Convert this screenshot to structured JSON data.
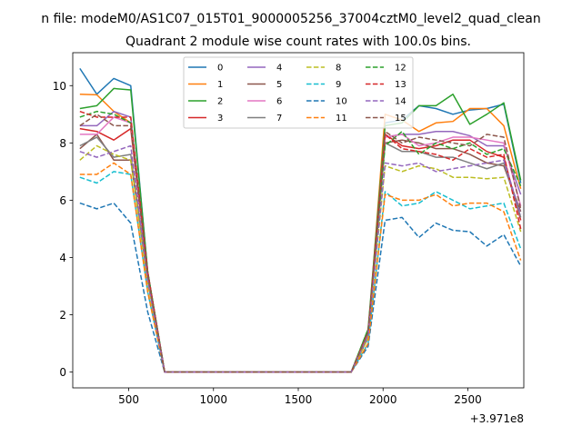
{
  "chart_data": {
    "type": "line",
    "suptitle": "n file: modeM0/AS1C07_015T01_9000005256_37004cztM0_level2_quad_clean",
    "title": "Quadrant 2 module wise count rates with 100.0s bins.",
    "xlabel": "",
    "ylabel": "",
    "x_offset_label": "+3.971e8",
    "xlim": [
      170,
      2830
    ],
    "ylim": [
      -0.55,
      11.15
    ],
    "xticks": [
      500,
      1000,
      1500,
      2000,
      2500
    ],
    "xtick_labels": [
      "500",
      "1000",
      "1500",
      "2000",
      "2500"
    ],
    "yticks": [
      0,
      2,
      4,
      6,
      8,
      10
    ],
    "ytick_labels": [
      "0",
      "2",
      "4",
      "6",
      "8",
      "10"
    ],
    "grid": false,
    "legend_position": "top-center",
    "legend_columns": 4,
    "x": [
      212,
      312,
      412,
      512,
      612,
      712,
      812,
      912,
      1012,
      1112,
      1212,
      1312,
      1412,
      1512,
      1612,
      1712,
      1812,
      1912,
      2012,
      2112,
      2212,
      2312,
      2412,
      2512,
      2612,
      2712,
      2812
    ],
    "series": [
      {
        "name": "0",
        "color": "#1f77b4",
        "dash": "solid",
        "values": [
          10.6,
          9.7,
          10.25,
          10.0,
          3.5,
          0,
          0,
          0,
          0,
          0,
          0,
          0,
          0,
          0,
          0,
          0,
          0,
          1.3,
          8.7,
          8.8,
          9.3,
          9.2,
          9.0,
          9.15,
          9.2,
          9.35,
          6.6
        ]
      },
      {
        "name": "1",
        "color": "#ff7f0e",
        "dash": "solid",
        "values": [
          9.7,
          9.68,
          9.1,
          8.7,
          3.3,
          0,
          0,
          0,
          0,
          0,
          0,
          0,
          0,
          0,
          0,
          0,
          0,
          1.3,
          9.0,
          8.8,
          8.4,
          8.7,
          8.75,
          9.2,
          9.2,
          8.6,
          6.4
        ]
      },
      {
        "name": "2",
        "color": "#2ca02c",
        "dash": "solid",
        "values": [
          9.2,
          9.3,
          9.9,
          9.85,
          3.5,
          0,
          0,
          0,
          0,
          0,
          0,
          0,
          0,
          0,
          0,
          0,
          0,
          1.5,
          8.6,
          8.7,
          9.3,
          9.3,
          9.7,
          8.65,
          9.0,
          9.4,
          6.7
        ]
      },
      {
        "name": "3",
        "color": "#d62728",
        "dash": "solid",
        "values": [
          8.5,
          8.4,
          8.1,
          8.5,
          3.3,
          0,
          0,
          0,
          0,
          0,
          0,
          0,
          0,
          0,
          0,
          0,
          0,
          1.3,
          8.3,
          7.9,
          7.8,
          7.9,
          8.1,
          8.1,
          7.7,
          7.5,
          5.3
        ]
      },
      {
        "name": "4",
        "color": "#9467bd",
        "dash": "solid",
        "values": [
          8.6,
          8.6,
          9.1,
          8.9,
          3.4,
          0,
          0,
          0,
          0,
          0,
          0,
          0,
          0,
          0,
          0,
          0,
          0,
          1.4,
          8.2,
          8.3,
          8.3,
          8.4,
          8.4,
          8.25,
          7.9,
          7.9,
          6.2
        ]
      },
      {
        "name": "5",
        "color": "#8c564b",
        "dash": "solid",
        "values": [
          7.8,
          8.3,
          7.4,
          7.4,
          3.2,
          0,
          0,
          0,
          0,
          0,
          0,
          0,
          0,
          0,
          0,
          0,
          0,
          1.2,
          8.0,
          8.1,
          8.0,
          7.8,
          7.8,
          7.6,
          7.3,
          7.2,
          5.6
        ]
      },
      {
        "name": "6",
        "color": "#e377c2",
        "dash": "solid",
        "values": [
          8.3,
          8.3,
          8.9,
          8.7,
          3.3,
          0,
          0,
          0,
          0,
          0,
          0,
          0,
          0,
          0,
          0,
          0,
          0,
          1.3,
          8.2,
          8.3,
          7.9,
          8.0,
          8.2,
          8.2,
          8.1,
          8.0,
          5.8
        ]
      },
      {
        "name": "7",
        "color": "#7f7f7f",
        "dash": "solid",
        "values": [
          7.9,
          8.2,
          7.5,
          7.6,
          3.2,
          0,
          0,
          0,
          0,
          0,
          0,
          0,
          0,
          0,
          0,
          0,
          0,
          1.2,
          8.0,
          7.7,
          7.7,
          7.5,
          7.5,
          7.3,
          7.1,
          7.3,
          5.4
        ]
      },
      {
        "name": "8",
        "color": "#bcbd22",
        "dash": "dashed",
        "values": [
          7.4,
          7.9,
          7.6,
          7.4,
          3.1,
          0,
          0,
          0,
          0,
          0,
          0,
          0,
          0,
          0,
          0,
          0,
          0,
          1.2,
          7.2,
          7.0,
          7.2,
          7.1,
          6.8,
          6.8,
          6.75,
          6.8,
          4.9
        ]
      },
      {
        "name": "9",
        "color": "#17becf",
        "dash": "dashed",
        "values": [
          6.8,
          6.6,
          7.0,
          6.9,
          2.8,
          0,
          0,
          0,
          0,
          0,
          0,
          0,
          0,
          0,
          0,
          0,
          0,
          1.0,
          6.3,
          5.8,
          5.9,
          6.3,
          6.0,
          5.7,
          5.8,
          5.9,
          4.3
        ]
      },
      {
        "name": "10",
        "color": "#1f77b4",
        "dash": "dashed",
        "values": [
          5.9,
          5.7,
          5.9,
          5.2,
          2.1,
          0,
          0,
          0,
          0,
          0,
          0,
          0,
          0,
          0,
          0,
          0,
          0,
          0.9,
          5.3,
          5.4,
          4.7,
          5.2,
          4.95,
          4.9,
          4.4,
          4.8,
          3.7
        ]
      },
      {
        "name": "11",
        "color": "#ff7f0e",
        "dash": "dashed",
        "values": [
          6.9,
          6.9,
          7.3,
          6.9,
          2.8,
          0,
          0,
          0,
          0,
          0,
          0,
          0,
          0,
          0,
          0,
          0,
          0,
          1.0,
          6.2,
          6.0,
          6.0,
          6.2,
          5.8,
          5.9,
          5.9,
          5.6,
          3.9
        ]
      },
      {
        "name": "12",
        "color": "#2ca02c",
        "dash": "dashed",
        "values": [
          8.9,
          9.1,
          9.0,
          8.7,
          3.5,
          0,
          0,
          0,
          0,
          0,
          0,
          0,
          0,
          0,
          0,
          0,
          0,
          1.5,
          7.9,
          8.4,
          7.6,
          8.0,
          7.8,
          8.0,
          7.6,
          7.8,
          6.5
        ]
      },
      {
        "name": "13",
        "color": "#d62728",
        "dash": "dashed",
        "values": [
          9.1,
          8.9,
          8.9,
          8.9,
          3.5,
          0,
          0,
          0,
          0,
          0,
          0,
          0,
          0,
          0,
          0,
          0,
          0,
          1.4,
          8.3,
          7.8,
          7.7,
          7.6,
          7.4,
          7.8,
          7.5,
          7.6,
          5.0
        ]
      },
      {
        "name": "14",
        "color": "#9467bd",
        "dash": "dashed",
        "values": [
          7.7,
          7.5,
          7.7,
          7.9,
          3.2,
          0,
          0,
          0,
          0,
          0,
          0,
          0,
          0,
          0,
          0,
          0,
          0,
          1.3,
          7.3,
          7.2,
          7.3,
          7.0,
          7.1,
          7.2,
          7.3,
          7.4,
          5.5
        ]
      },
      {
        "name": "15",
        "color": "#8c564b",
        "dash": "dashed",
        "values": [
          8.6,
          9.0,
          8.6,
          8.6,
          3.4,
          0,
          0,
          0,
          0,
          0,
          0,
          0,
          0,
          0,
          0,
          0,
          0,
          1.4,
          8.4,
          8.0,
          8.2,
          8.1,
          8.0,
          7.9,
          8.3,
          8.2,
          5.7
        ]
      }
    ]
  }
}
